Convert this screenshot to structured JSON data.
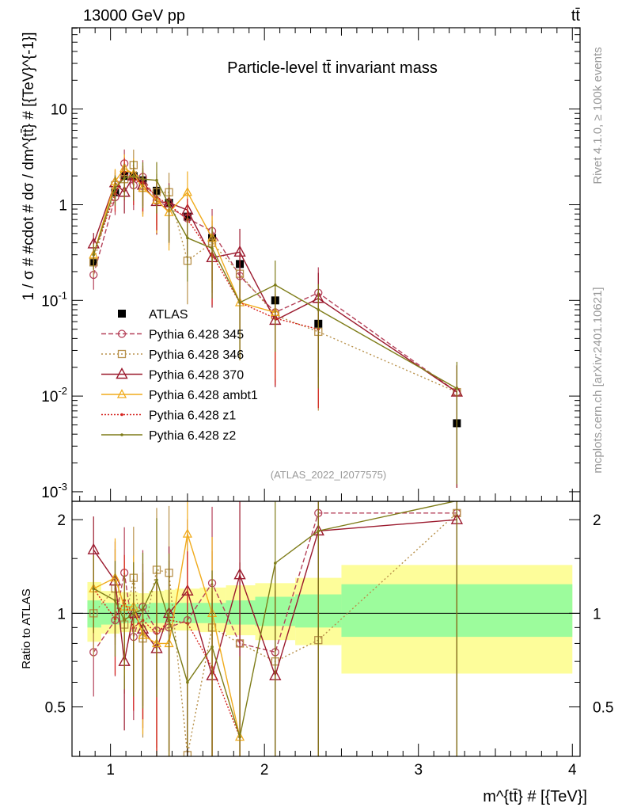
{
  "header": {
    "energy_label": "13000 GeV pp",
    "process_label": "tt̄"
  },
  "side_labels": {
    "rivet": "Rivet 4.1.0, ≥ 100k events",
    "mcplots": "mcplots.cern.ch [arXiv:2401.10621]"
  },
  "colors": {
    "ATLAS": "#000000",
    "p345": "#b5425a",
    "p346": "#b8914b",
    "p370": "#9b1a2e",
    "ambt1": "#f0ab1c",
    "z1": "#d6231f",
    "z2": "#7e7c18",
    "band_stat": "#9cfc9c",
    "band_syst": "#fdfd9a"
  },
  "chart_data": [
    {
      "type": "line",
      "name": "main",
      "title": "Particle-level tt̄ invariant mass",
      "ylabel": "1 / σ # #cdot # dσ / dm^{tt̄} # [{TeV}^{-1}]",
      "xlabel": "m^{tt̄} # [{TeV}]",
      "watermark": "(ATLAS_2022_I2077575)",
      "xlim": [
        0.75,
        4.05
      ],
      "ylim_log10": [
        -3.1,
        1.85
      ],
      "yscale": "log",
      "y_tick_labels": [
        "10",
        "1",
        "10^{-1}",
        "10^{-2}",
        "10^{-3}"
      ],
      "x_tick_labels": [
        "1",
        "2",
        "3",
        "4"
      ],
      "legend": [
        "ATLAS",
        "Pythia 6.428 345",
        "Pythia 6.428 346",
        "Pythia 6.428 370",
        "Pythia 6.428 ambt1",
        "Pythia 6.428 z1",
        "Pythia 6.428 z2"
      ],
      "x": [
        0.89,
        1.03,
        1.09,
        1.15,
        1.21,
        1.3,
        1.38,
        1.5,
        1.66,
        1.84,
        2.07,
        2.35,
        3.25
      ],
      "x_bin_edges": [
        0.85,
        0.94,
        1.06,
        1.12,
        1.18,
        1.25,
        1.35,
        1.42,
        1.58,
        1.75,
        1.94,
        2.2,
        2.5,
        4.0
      ],
      "series": [
        {
          "name": "ATLAS",
          "key": "ATLAS",
          "marker": "square-filled",
          "values": [
            0.25,
            1.35,
            2.0,
            2.0,
            1.8,
            1.4,
            1.05,
            0.75,
            0.45,
            0.24,
            0.1,
            0.057,
            0.0052
          ]
        },
        {
          "name": "Pythia 6.428 345",
          "key": "p345",
          "marker": "circle-open",
          "dash": "6,3",
          "values": [
            0.185,
            1.2,
            2.7,
            1.6,
            1.95,
            1.1,
            0.95,
            0.72,
            0.53,
            0.18,
            0.075,
            0.12,
            0.011
          ]
        },
        {
          "name": "Pythia 6.428 346",
          "key": "p346",
          "marker": "square-open",
          "dash": "2,3",
          "values": [
            0.25,
            1.6,
            1.85,
            2.6,
            1.5,
            1.35,
            1.35,
            0.26,
            0.4,
            0.19,
            0.07,
            0.047,
            0.011
          ]
        },
        {
          "name": "Pythia 6.428 370",
          "key": "p370",
          "marker": "triangle-open",
          "dash": "",
          "values": [
            0.39,
            1.7,
            1.35,
            2.0,
            1.6,
            1.08,
            1.05,
            0.88,
            0.28,
            0.32,
            0.062,
            0.105,
            0.011
          ]
        },
        {
          "name": "Pythia 6.428 ambt1",
          "key": "ambt1",
          "marker": "triangle-open-small",
          "dash": "",
          "values": [
            0.3,
            1.75,
            2.4,
            2.1,
            1.5,
            1.12,
            0.83,
            1.35,
            0.45,
            0.095,
            0.075,
            0.0,
            0.0
          ]
        },
        {
          "name": "Pythia 6.428 z1",
          "key": "z1",
          "marker": "dot",
          "dash": "2,2",
          "values": [
            0.3,
            1.3,
            2.2,
            1.8,
            1.7,
            1.2,
            1.0,
            0.7,
            0.3,
            0.095,
            0.065,
            0.05,
            0.0
          ]
        },
        {
          "name": "Pythia 6.428 z2",
          "key": "z2",
          "marker": "dot",
          "dash": "",
          "values": [
            0.3,
            1.5,
            1.9,
            2.0,
            1.85,
            1.8,
            1.0,
            0.45,
            0.35,
            0.095,
            0.145,
            0.08,
            0.012
          ]
        }
      ]
    },
    {
      "type": "line",
      "name": "ratio",
      "ylabel": "Ratio to ATLAS",
      "ylim_log10": [
        -0.46,
        0.36
      ],
      "yscale": "log",
      "y_tick_labels": [
        "2",
        "1",
        "0.5"
      ],
      "y_tick_values": [
        2,
        1,
        0.5
      ],
      "band_stat": [
        [
          0.9,
          1.1
        ],
        [
          0.92,
          1.08
        ],
        [
          0.93,
          1.07
        ],
        [
          0.93,
          1.07
        ],
        [
          0.93,
          1.07
        ],
        [
          0.93,
          1.08
        ],
        [
          0.93,
          1.08
        ],
        [
          0.93,
          1.08
        ],
        [
          0.93,
          1.08
        ],
        [
          0.92,
          1.1
        ],
        [
          0.91,
          1.13
        ],
        [
          0.9,
          1.15
        ],
        [
          0.84,
          1.24
        ]
      ],
      "band_syst": [
        [
          0.81,
          1.26
        ],
        [
          0.86,
          1.18
        ],
        [
          0.87,
          1.17
        ],
        [
          0.87,
          1.17
        ],
        [
          0.88,
          1.16
        ],
        [
          0.87,
          1.18
        ],
        [
          0.88,
          1.19
        ],
        [
          0.88,
          1.2
        ],
        [
          0.87,
          1.21
        ],
        [
          0.85,
          1.23
        ],
        [
          0.82,
          1.25
        ],
        [
          0.79,
          1.3
        ],
        [
          0.64,
          1.43
        ]
      ],
      "series": [
        {
          "key": "p345",
          "values": [
            0.75,
            0.95,
            1.35,
            0.84,
            1.05,
            0.88,
            0.9,
            0.95,
            1.25,
            0.8,
            0.75,
            2.1,
            2.1
          ]
        },
        {
          "key": "p346",
          "values": [
            1.0,
            1.2,
            0.92,
            1.3,
            0.83,
            1.38,
            1.35,
            0.35,
            0.9,
            0.8,
            0.7,
            0.82,
            2.1
          ]
        },
        {
          "key": "p370",
          "values": [
            1.6,
            1.27,
            0.7,
            1.0,
            0.89,
            0.77,
            1.0,
            1.18,
            0.63,
            1.33,
            0.63,
            1.84,
            2.0
          ]
        },
        {
          "key": "ambt1",
          "values": [
            1.2,
            1.3,
            1.05,
            1.05,
            0.85,
            0.8,
            0.8,
            1.8,
            1.0,
            0.4,
            0.0,
            0.0,
            0.0
          ]
        },
        {
          "key": "z1",
          "values": [
            1.2,
            0.96,
            1.1,
            0.9,
            0.95,
            0.86,
            0.95,
            0.93,
            0.67,
            0.4,
            0.0,
            0.0,
            0.0
          ]
        },
        {
          "key": "z2",
          "values": [
            1.2,
            1.1,
            0.95,
            1.0,
            1.03,
            1.28,
            0.95,
            0.6,
            0.78,
            0.4,
            1.45,
            1.84,
            2.3
          ]
        }
      ]
    }
  ]
}
